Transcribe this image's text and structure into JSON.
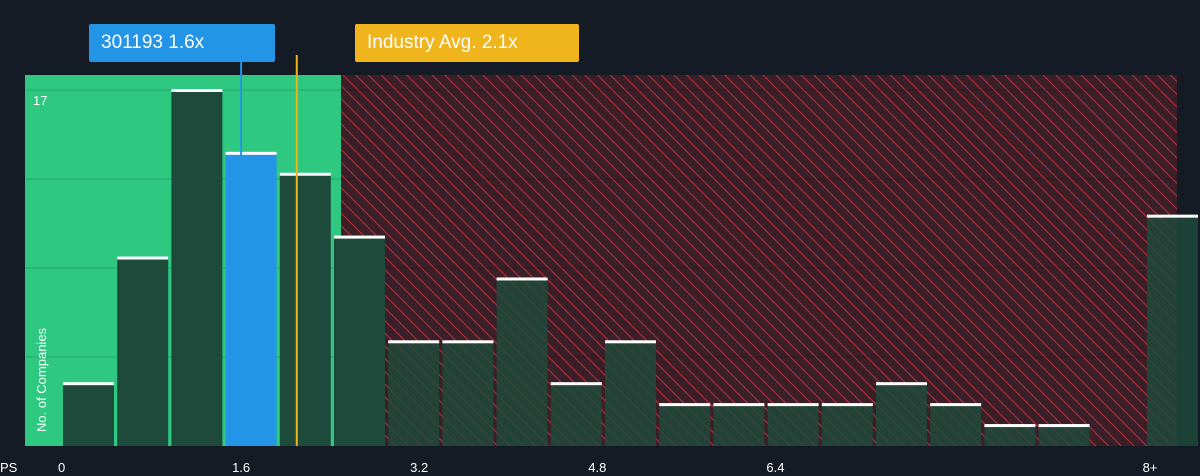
{
  "colors": {
    "background": "#151b24",
    "green_zone": "#2ec880",
    "red_zone": "#3a1f29",
    "hatch": "#c0303a",
    "bar_dark": "#1e4a3c",
    "bar_highlight": "#2394e6",
    "industry_line": "#f0b41c",
    "bar_cap": "#ffffff"
  },
  "callouts": {
    "company": "301193 1.6x",
    "industry": "Industry Avg. 2.1x"
  },
  "chart_data": {
    "type": "bar",
    "xlabel": "PS",
    "ylabel": "No. of Companies",
    "x_ticks": [
      "0",
      "1.6",
      "3.2",
      "4.8",
      "6.4",
      "8+"
    ],
    "y_tick_label": "17",
    "ylim": [
      0,
      17
    ],
    "company_value": 1.6,
    "industry_avg": 2.1,
    "bins": [
      0,
      0.4,
      0.8,
      1.2,
      1.6,
      2.0,
      2.4,
      2.8,
      3.2,
      3.6,
      4.0,
      4.4,
      4.8,
      5.2,
      5.6,
      6.0,
      6.4,
      6.8,
      7.2,
      7.6,
      8.0
    ],
    "values": [
      3,
      9,
      17,
      14,
      13,
      10,
      5,
      5,
      8,
      3,
      5,
      2,
      2,
      2,
      2,
      3,
      2,
      1,
      1,
      0,
      11
    ],
    "highlight_index": 3
  }
}
